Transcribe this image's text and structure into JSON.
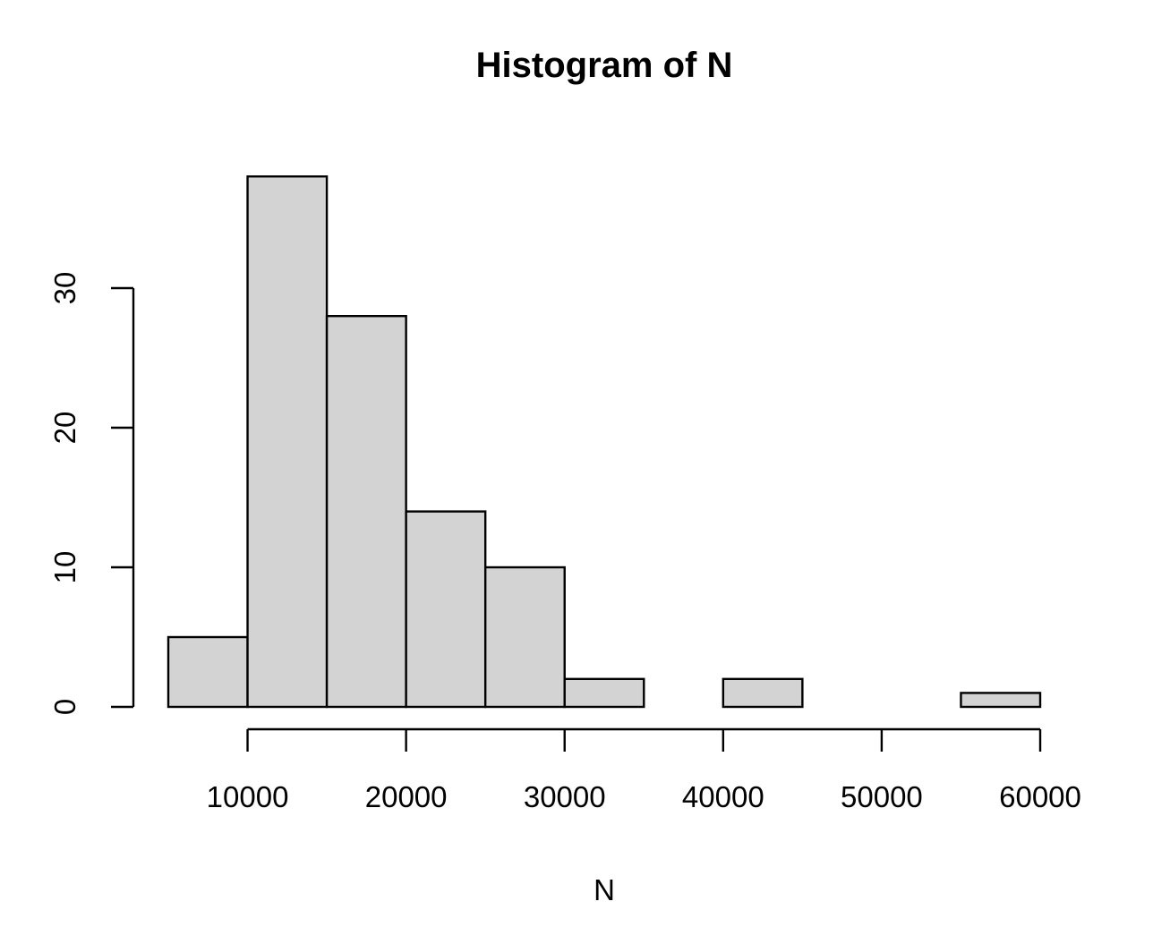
{
  "chart_data": {
    "type": "bar",
    "title": "Histogram of N",
    "xlabel": "N",
    "ylabel": "",
    "bins": [
      {
        "from": 5000,
        "to": 10000,
        "count": 5
      },
      {
        "from": 10000,
        "to": 15000,
        "count": 38
      },
      {
        "from": 15000,
        "to": 20000,
        "count": 28
      },
      {
        "from": 20000,
        "to": 25000,
        "count": 14
      },
      {
        "from": 25000,
        "to": 30000,
        "count": 10
      },
      {
        "from": 30000,
        "to": 35000,
        "count": 2
      },
      {
        "from": 35000,
        "to": 40000,
        "count": 0
      },
      {
        "from": 40000,
        "to": 45000,
        "count": 2
      },
      {
        "from": 45000,
        "to": 50000,
        "count": 0
      },
      {
        "from": 50000,
        "to": 55000,
        "count": 0
      },
      {
        "from": 55000,
        "to": 60000,
        "count": 1
      }
    ],
    "xlim": [
      5000,
      60000
    ],
    "ylim": [
      0,
      38
    ],
    "x_ticks": [
      10000,
      20000,
      30000,
      40000,
      50000,
      60000
    ],
    "x_tick_labels": [
      "10000",
      "20000",
      "30000",
      "40000",
      "50000",
      "60000"
    ],
    "y_ticks": [
      0,
      10,
      20,
      30
    ],
    "y_tick_labels": [
      "0",
      "10",
      "20",
      "30"
    ],
    "grid": false,
    "bar_color": "#d3d3d3",
    "edge_color": "#000000"
  }
}
